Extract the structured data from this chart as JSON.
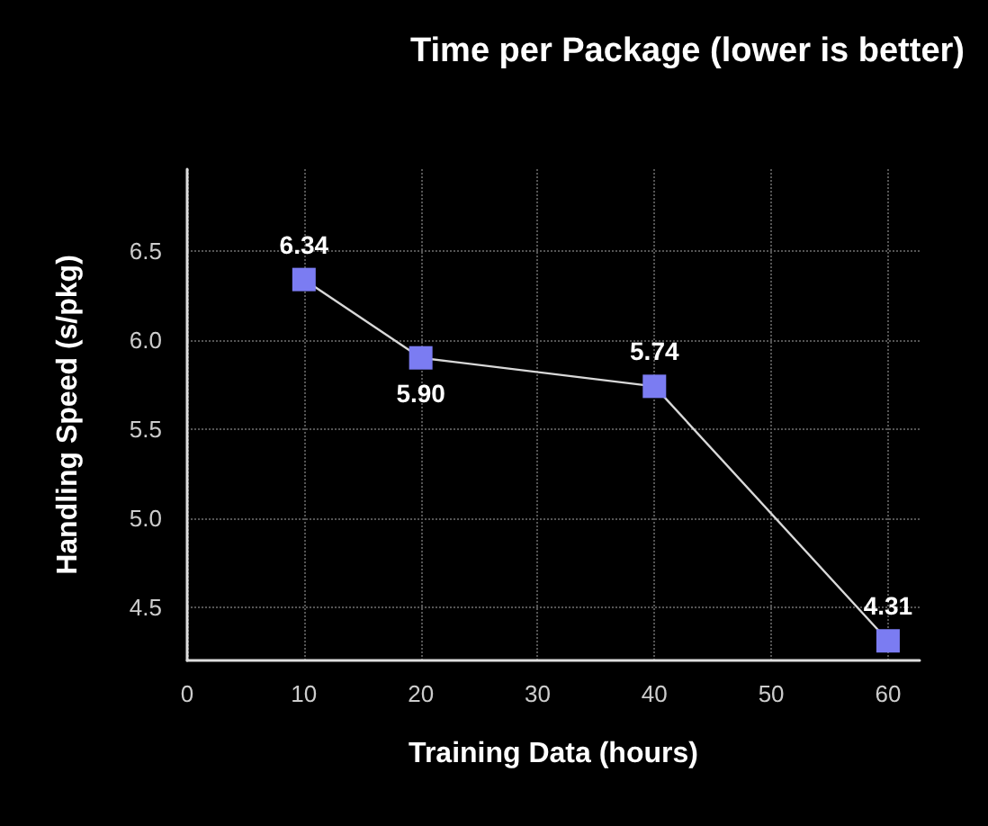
{
  "chart_data": {
    "type": "line",
    "title": "Time per Package (lower is better)",
    "xlabel": "Training Data (hours)",
    "ylabel": "Handling Speed (s/pkg)",
    "x": [
      10,
      20,
      40,
      60
    ],
    "series": [
      {
        "color": "#7b7cf2",
        "values": [
          6.34,
          5.9,
          5.74,
          4.31
        ],
        "value_labels": [
          "6.34",
          "5.90",
          "5.74",
          "4.31"
        ]
      }
    ],
    "xlim": [
      0,
      62.7
    ],
    "xticks": [
      0,
      10,
      20,
      30,
      40,
      50,
      60
    ],
    "ylim": [
      4.2,
      6.96
    ],
    "yticks": [
      4.5,
      {
        "value": 5,
        "label": "5.0"
      },
      5.5,
      {
        "value": 6,
        "label": "6.0"
      },
      6.5
    ],
    "grid": true,
    "marker": "square",
    "line_style": "solid"
  }
}
